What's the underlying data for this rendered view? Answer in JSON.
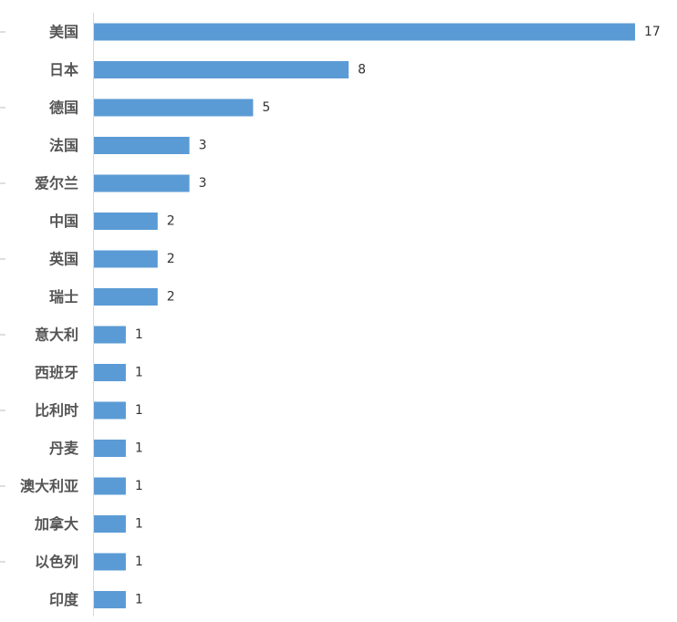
{
  "chart_data": {
    "type": "bar",
    "orientation": "horizontal",
    "categories": [
      "美国",
      "日本",
      "德国",
      "法国",
      "爱尔兰",
      "中国",
      "英国",
      "瑞士",
      "意大利",
      "西班牙",
      "比利时",
      "丹麦",
      "澳大利亚",
      "加拿大",
      "以色列",
      "印度"
    ],
    "values": [
      17,
      8,
      5,
      3,
      3,
      2,
      2,
      2,
      1,
      1,
      1,
      1,
      1,
      1,
      1,
      1
    ],
    "xlim": [
      0,
      17
    ],
    "grid": false,
    "legend": "none",
    "data_labels": true,
    "bar_color": "#5b9bd5"
  }
}
